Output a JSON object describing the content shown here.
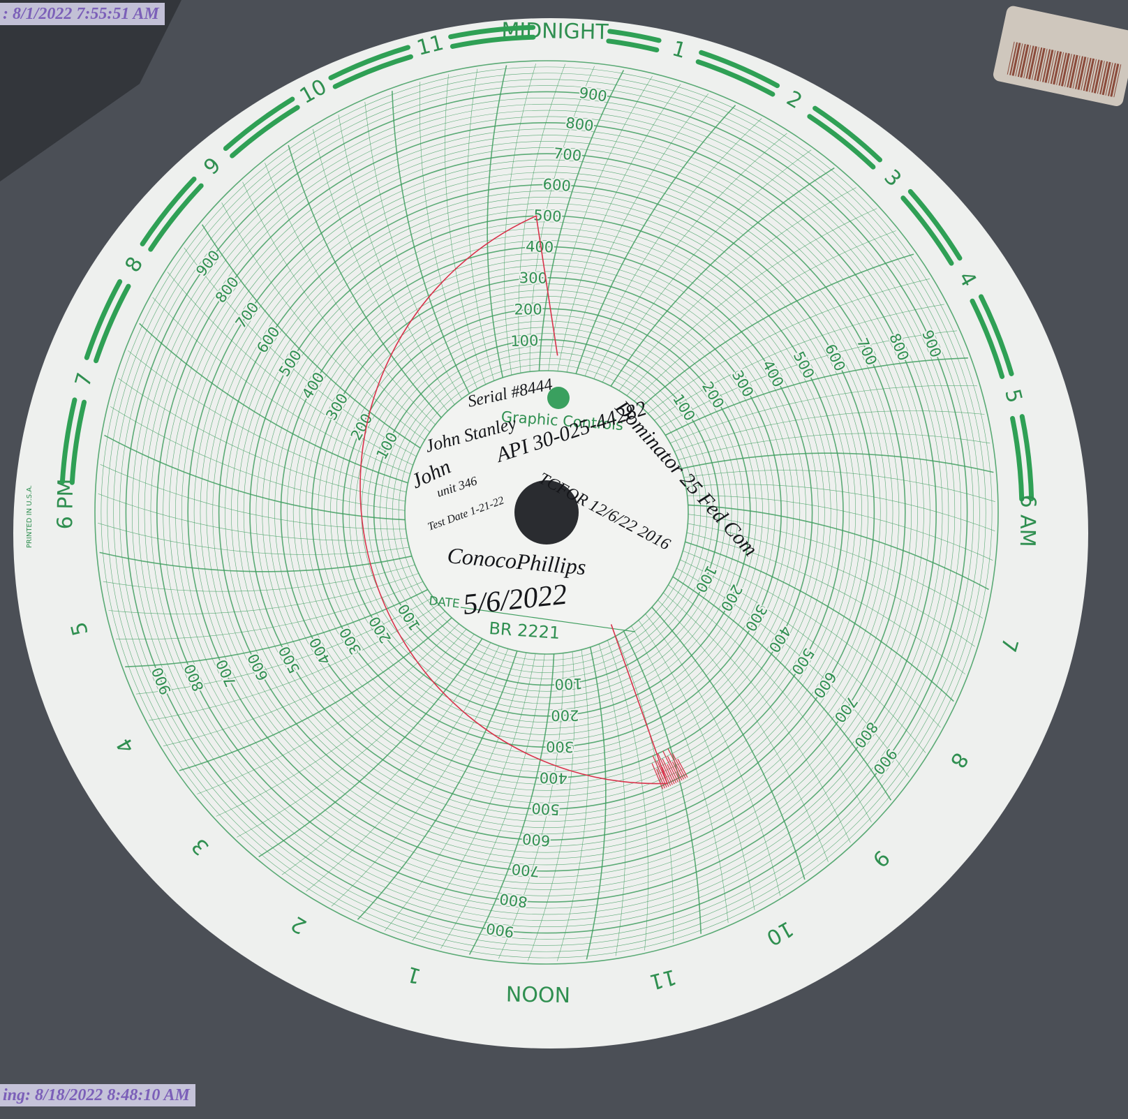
{
  "stamps": {
    "top": ": 8/1/2022 7:55:51 AM",
    "bottom": "ing: 8/18/2022 8:48:10 AM"
  },
  "chart_paper": {
    "hour_labels": [
      "MIDNIGHT",
      "1",
      "2",
      "3",
      "4",
      "5",
      "6 AM",
      "7",
      "8",
      "9",
      "10",
      "11",
      "NOON",
      "1",
      "2",
      "3",
      "4",
      "5",
      "6 PM",
      "7",
      "8",
      "9",
      "10",
      "11"
    ],
    "scale_labels": [
      100,
      200,
      300,
      400,
      500,
      600,
      700,
      800,
      900
    ],
    "brand": "Graphic Controls",
    "date_label": "DATE",
    "model": "BR 2221",
    "printed_in": "PRINTED IN U.S.A."
  },
  "handwriting": [
    "Serial #8444",
    "Dominator 25 Fed Com",
    "API 30-025-44282",
    "John Stanley",
    "TCFOR 12/6/22 2016",
    "John",
    "unit 346",
    "Test Date 1-21-22",
    "ConocoPhillips",
    "5/6/2022"
  ]
}
